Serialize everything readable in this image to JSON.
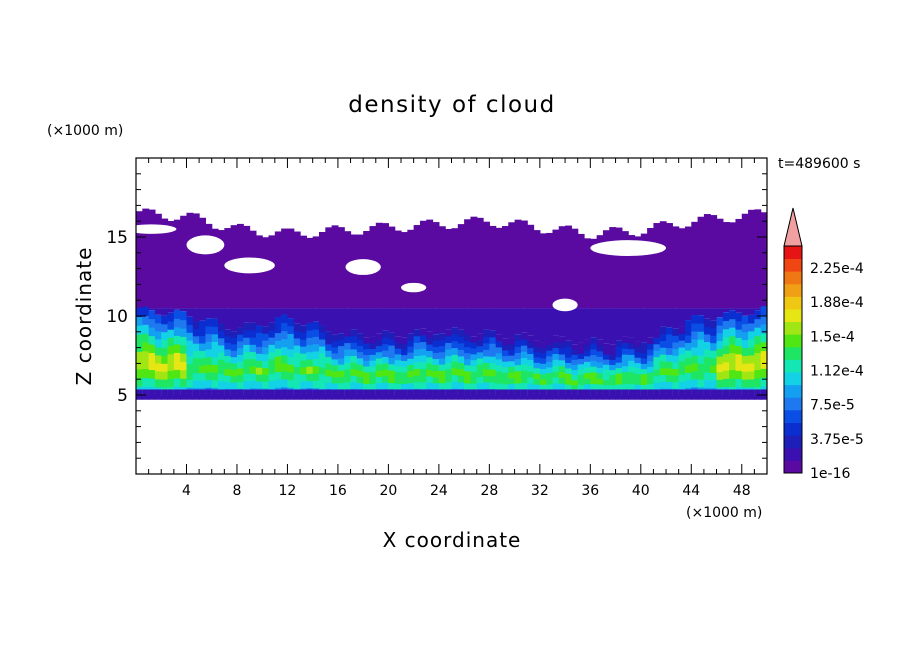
{
  "chart_data": {
    "type": "heatmap",
    "title": "density of cloud",
    "xlabel": "X coordinate",
    "ylabel": "Z coordinate",
    "x_unit": "(×1000 m)",
    "y_unit": "(×1000 m)",
    "time_label": "t=489600 s",
    "xlim": [
      0,
      50
    ],
    "ylim": [
      0,
      20
    ],
    "x_ticks": [
      4,
      8,
      12,
      16,
      20,
      24,
      28,
      32,
      36,
      40,
      44,
      48
    ],
    "y_ticks": [
      5,
      10,
      15
    ],
    "x_tick_labels": [
      "4",
      "8",
      "12",
      "16",
      "20",
      "24",
      "28",
      "32",
      "36",
      "40",
      "44",
      "48"
    ],
    "y_tick_labels": [
      "5",
      "10",
      "15"
    ],
    "cloud_base_km": 5,
    "cloud_top_km": [
      16.5,
      16.3,
      15.5,
      15.2,
      15.4,
      15.6,
      15.8,
      16.0,
      15.6,
      15.2,
      15.4,
      16.0,
      16.5
    ],
    "top_profile_x_km": [
      0,
      4,
      8,
      12,
      16,
      20,
      24,
      28,
      32,
      36,
      40,
      44,
      50
    ],
    "core_top_km": [
      8.8,
      8.5,
      7.6,
      8.3,
      7.4,
      7.2,
      7.5,
      7.3,
      7.0,
      6.8,
      6.9,
      8.2,
      8.8
    ],
    "colorbar": {
      "labels": [
        "2.25e-4",
        "1.88e-4",
        "1.5e-4",
        "1.12e-4",
        "7.5e-5",
        "3.75e-5",
        "1e-16"
      ],
      "colors": [
        "#5a0aa0",
        "#3a10b0",
        "#1e1eb8",
        "#0a2ed0",
        "#0a4ee6",
        "#1e78f0",
        "#14a0f0",
        "#14d2e6",
        "#14e6b4",
        "#1ee664",
        "#50e614",
        "#a0e614",
        "#e6e614",
        "#f0c814",
        "#f0a014",
        "#f07814",
        "#f04614",
        "#e61414"
      ],
      "extend_color": "#f0a0a0"
    },
    "colors": {
      "cloud_outer": "#5a0aa0",
      "cloud_mid": "#3a10b0"
    }
  }
}
